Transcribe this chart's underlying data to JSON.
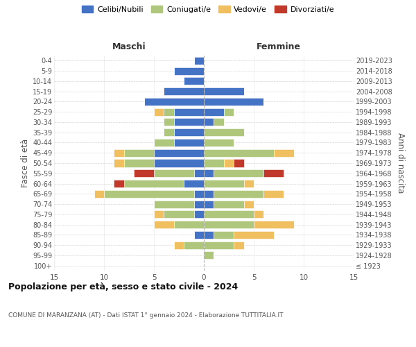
{
  "age_groups": [
    "100+",
    "95-99",
    "90-94",
    "85-89",
    "80-84",
    "75-79",
    "70-74",
    "65-69",
    "60-64",
    "55-59",
    "50-54",
    "45-49",
    "40-44",
    "35-39",
    "30-34",
    "25-29",
    "20-24",
    "15-19",
    "10-14",
    "5-9",
    "0-4"
  ],
  "birth_years": [
    "≤ 1923",
    "1924-1928",
    "1929-1933",
    "1934-1938",
    "1939-1943",
    "1944-1948",
    "1949-1953",
    "1954-1958",
    "1959-1963",
    "1964-1968",
    "1969-1973",
    "1974-1978",
    "1979-1983",
    "1984-1988",
    "1989-1993",
    "1994-1998",
    "1999-2003",
    "2004-2008",
    "2009-2013",
    "2014-2018",
    "2019-2023"
  ],
  "colors": {
    "celibe": "#4472c4",
    "coniugato": "#aec77d",
    "vedovo": "#f0c060",
    "divorziato": "#c0392b"
  },
  "maschi": {
    "celibe": [
      0,
      0,
      0,
      1,
      0,
      1,
      1,
      1,
      2,
      1,
      5,
      5,
      3,
      3,
      3,
      3,
      6,
      4,
      2,
      3,
      1
    ],
    "coniugato": [
      0,
      0,
      2,
      0,
      3,
      3,
      4,
      9,
      6,
      4,
      3,
      3,
      2,
      1,
      1,
      1,
      0,
      0,
      0,
      0,
      0
    ],
    "vedovo": [
      0,
      0,
      1,
      0,
      2,
      1,
      0,
      1,
      0,
      0,
      1,
      1,
      0,
      0,
      0,
      1,
      0,
      0,
      0,
      0,
      0
    ],
    "divorziato": [
      0,
      0,
      0,
      0,
      0,
      0,
      0,
      0,
      1,
      2,
      0,
      0,
      0,
      0,
      0,
      0,
      0,
      0,
      0,
      0,
      0
    ]
  },
  "femmine": {
    "celibe": [
      0,
      0,
      0,
      1,
      0,
      0,
      1,
      1,
      0,
      1,
      0,
      0,
      0,
      0,
      1,
      2,
      6,
      4,
      0,
      0,
      0
    ],
    "coniugato": [
      0,
      1,
      3,
      2,
      5,
      5,
      3,
      5,
      4,
      5,
      2,
      7,
      3,
      4,
      1,
      1,
      0,
      0,
      0,
      0,
      0
    ],
    "vedovo": [
      0,
      0,
      1,
      4,
      4,
      1,
      1,
      2,
      1,
      0,
      1,
      2,
      0,
      0,
      0,
      0,
      0,
      0,
      0,
      0,
      0
    ],
    "divorziato": [
      0,
      0,
      0,
      0,
      0,
      0,
      0,
      0,
      0,
      2,
      1,
      0,
      0,
      0,
      0,
      0,
      0,
      0,
      0,
      0,
      0
    ]
  },
  "xlim": 15,
  "xlabel_left": "Maschi",
  "xlabel_right": "Femmine",
  "ylabel_left": "Fasce di età",
  "ylabel_right": "Anni di nascita",
  "title": "Popolazione per età, sesso e stato civile - 2024",
  "subtitle": "COMUNE DI MARANZANA (AT) - Dati ISTAT 1° gennaio 2024 - Elaborazione TUTTITALIA.IT",
  "legend_labels": [
    "Celibi/Nubili",
    "Coniugati/e",
    "Vedovi/e",
    "Divorziati/e"
  ],
  "legend_colors": [
    "#4472c4",
    "#aec77d",
    "#f0c060",
    "#c0392b"
  ],
  "bg_color": "#ffffff",
  "grid_color": "#cccccc",
  "bar_height": 0.75
}
